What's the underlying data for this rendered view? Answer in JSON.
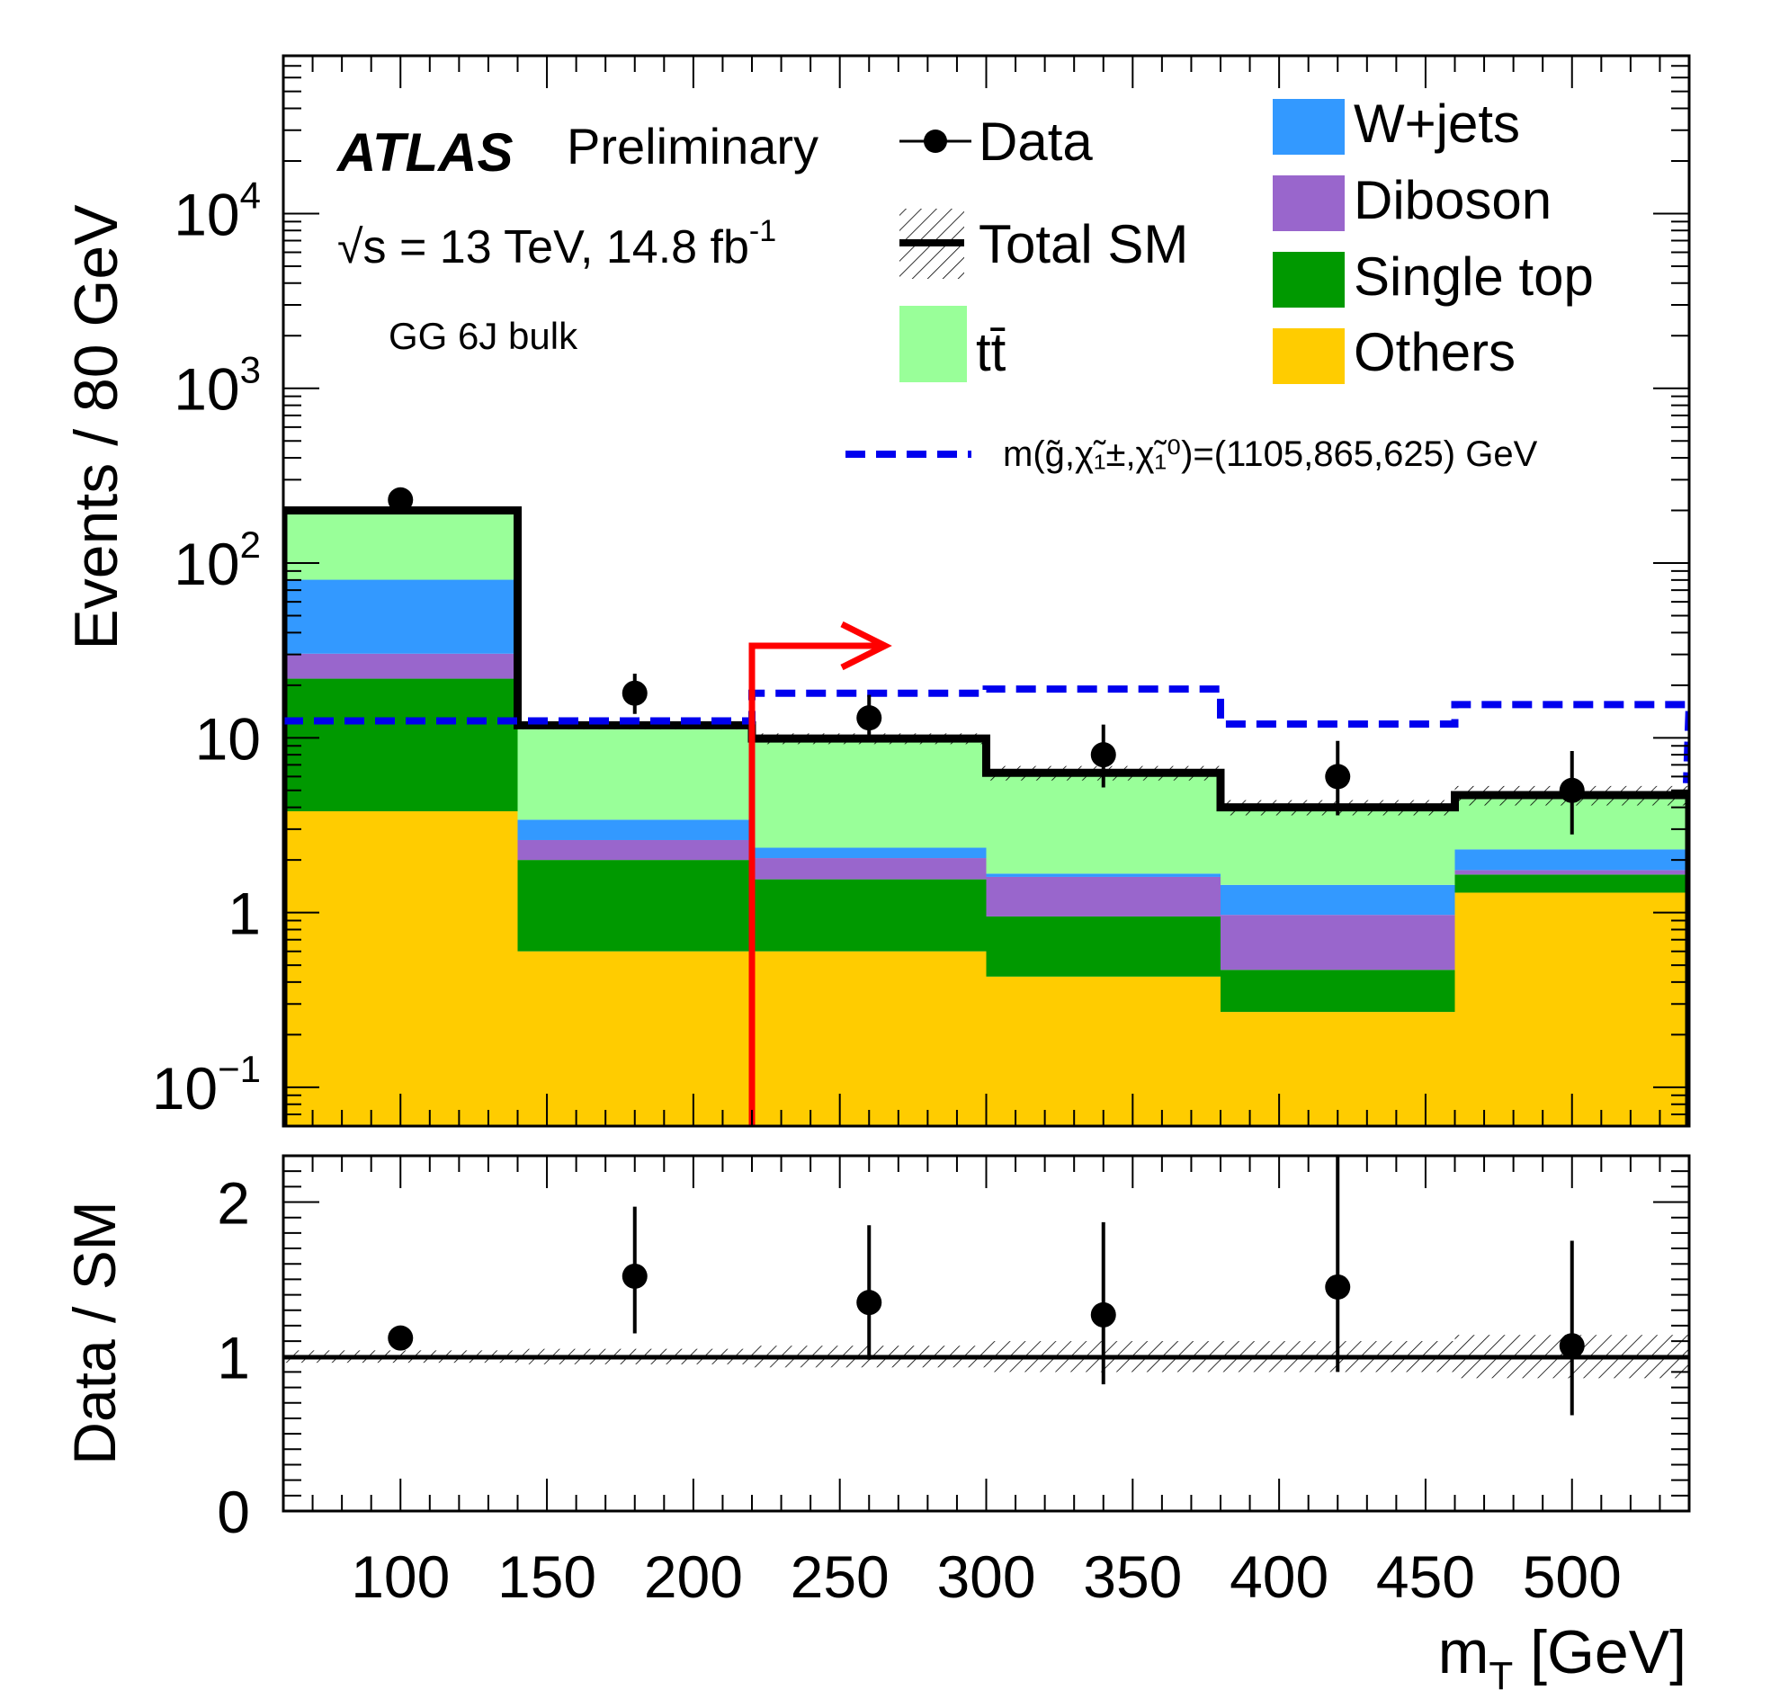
{
  "chart_data": {
    "type": "bar",
    "stacked": true,
    "yscale": "log",
    "x_bin_edges": [
      60,
      140,
      220,
      300,
      380,
      460,
      540
    ],
    "xlim": [
      60,
      540
    ],
    "ylim": [
      0.06,
      80000
    ],
    "xlabel": "m",
    "xlabel_sub": "T",
    "xlabel_unit": " [GeV]",
    "ylabel": "Events / 80 GeV",
    "x_tick_labels": [
      "100",
      "150",
      "200",
      "250",
      "300",
      "350",
      "400",
      "450",
      "500"
    ],
    "y_tick_labels": [
      {
        "base": "10",
        "exp": "4"
      },
      {
        "base": "10",
        "exp": "3"
      },
      {
        "base": "10",
        "exp": "2"
      },
      {
        "base": "10",
        "exp": ""
      },
      {
        "base": "1",
        "exp": ""
      },
      {
        "base": "10",
        "exp": "−1"
      }
    ],
    "atlas_label": "ATLAS",
    "atlas_sublabel": "Preliminary",
    "energy_label": "√s = 13 TeV, 14.8 fb",
    "energy_exp": "-1",
    "region_label": "GG 6J bulk",
    "legend": {
      "data": "Data",
      "total_sm": "Total SM",
      "ttbar": "tt̄",
      "signal": "m(g̃,χ̃₁±,χ̃₁⁰)=(1105,865,625) GeV",
      "placement": "top"
    },
    "series": [
      {
        "name": "Others",
        "color": "#ffcc00",
        "values": [
          3.8,
          0.6,
          0.6,
          0.43,
          0.27,
          1.3
        ]
      },
      {
        "name": "Single top",
        "color": "#009900",
        "values": [
          18,
          1.4,
          0.95,
          0.52,
          0.2,
          0.35
        ]
      },
      {
        "name": "Diboson",
        "color": "#9966cc",
        "values": [
          8.5,
          0.6,
          0.5,
          0.65,
          0.5,
          0.1
        ]
      },
      {
        "name": "W+jets",
        "color": "#3399ff",
        "values": [
          50,
          0.8,
          0.3,
          0.07,
          0.47,
          0.55
        ]
      },
      {
        "name": "tt̄",
        "color": "#99ff99",
        "values": [
          120,
          8.4,
          7.5,
          4.6,
          2.6,
          2.4
        ]
      }
    ],
    "total_sm": [
      200,
      11.8,
      9.9,
      6.3,
      4.0,
      4.7
    ],
    "total_sm_uncertainty": [
      8,
      0.6,
      0.7,
      0.6,
      0.4,
      0.6
    ],
    "data_points": [
      {
        "x": 100,
        "y": 230,
        "err_lo": 15,
        "err_hi": 15
      },
      {
        "x": 180,
        "y": 18,
        "err_lo": 4.3,
        "err_hi": 5.3
      },
      {
        "x": 260,
        "y": 13,
        "err_lo": 3.6,
        "err_hi": 4.6
      },
      {
        "x": 340,
        "y": 8,
        "err_lo": 2.8,
        "err_hi": 3.9
      },
      {
        "x": 420,
        "y": 6,
        "err_lo": 2.4,
        "err_hi": 3.6
      },
      {
        "x": 500,
        "y": 5,
        "err_lo": 2.2,
        "err_hi": 3.4
      }
    ],
    "signal": [
      12.5,
      12.5,
      18,
      19,
      12,
      15.5
    ],
    "cut_arrow_x": 220,
    "ratio": {
      "ylabel": "Data / SM",
      "ylim": [
        0,
        2.3
      ],
      "y_tick_labels": [
        "0",
        "1",
        "2"
      ],
      "points": [
        {
          "x": 100,
          "y": 1.12,
          "err_lo": 0.07,
          "err_hi": 0.07
        },
        {
          "x": 180,
          "y": 1.52,
          "err_lo": 0.37,
          "err_hi": 0.45
        },
        {
          "x": 260,
          "y": 1.35,
          "err_lo": 0.37,
          "err_hi": 0.5
        },
        {
          "x": 340,
          "y": 1.27,
          "err_lo": 0.45,
          "err_hi": 0.6
        },
        {
          "x": 420,
          "y": 1.45,
          "err_lo": 0.55,
          "err_hi": 0.85
        },
        {
          "x": 500,
          "y": 1.07,
          "err_lo": 0.45,
          "err_hi": 0.68
        }
      ],
      "band": [
        0.04,
        0.05,
        0.07,
        0.1,
        0.1,
        0.14
      ]
    }
  }
}
